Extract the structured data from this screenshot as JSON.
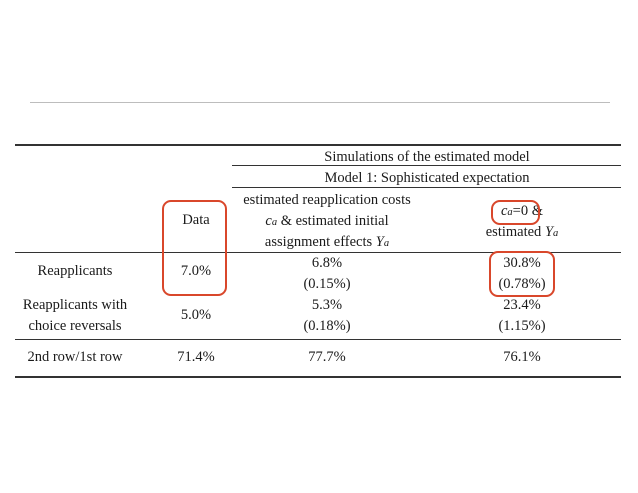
{
  "table": {
    "group_header": "Simulations of the estimated model",
    "model_header": "Model 1: Sophisticated expectation",
    "col_data": "Data",
    "col_model1": {
      "line1": "estimated reapplication costs",
      "l2_sym": "c",
      "l2_sub": "a",
      "l2_rest": " & estimated initial",
      "l3_text": "assignment effects ",
      "l3_sym": "Y",
      "l3_sub": "a"
    },
    "col_model2": {
      "l1_sym": "c",
      "l1_sub": "a",
      "l1_rest": "=0 &",
      "l2_text": "estimated ",
      "l2_sym": "Y",
      "l2_sub": "a"
    },
    "rows": [
      {
        "label": "Reapplicants",
        "data": "7.0%",
        "m1": "6.8%",
        "m1_se": "(0.15%)",
        "m2": "30.8%",
        "m2_se": "(0.78%)"
      },
      {
        "label_line1": "Reapplicants with",
        "label_line2": "choice reversals",
        "data": "5.0%",
        "m1": "5.3%",
        "m1_se": "(0.18%)",
        "m2": "23.4%",
        "m2_se": "(1.15%)"
      },
      {
        "label": "2nd row/1st row",
        "data": "71.4%",
        "m1": "77.7%",
        "m2": "76.1%"
      }
    ]
  },
  "highlight_color": "#d9472b"
}
